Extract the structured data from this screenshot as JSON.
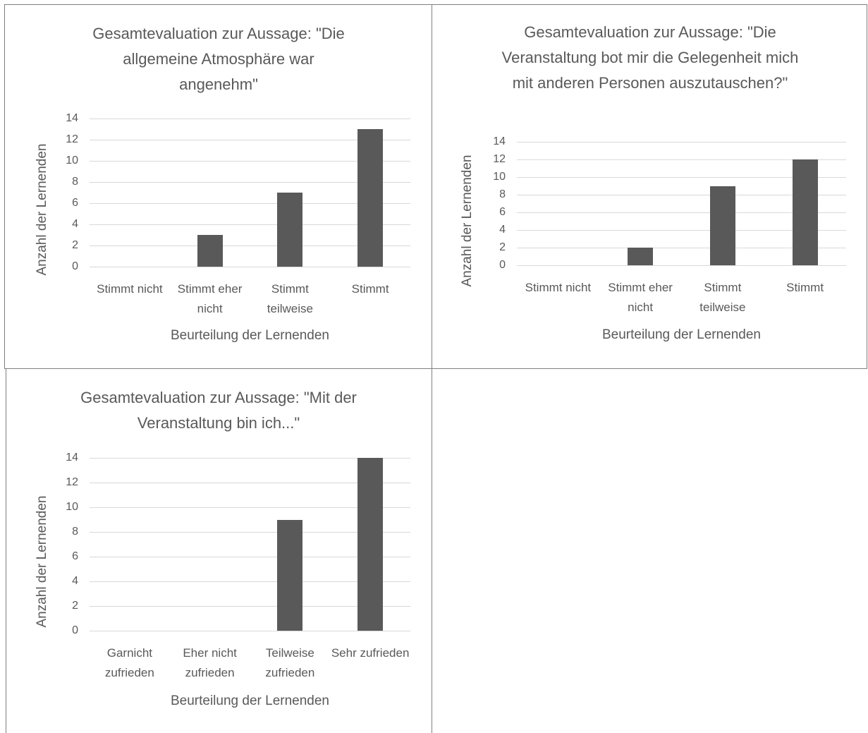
{
  "chart_data": [
    {
      "type": "bar",
      "title": "Gesamtevaluation zur Aussage: \"Die allgemeine Atmosphäre war angenehm\"",
      "y_label": "Anzahl  der Lernenden",
      "x_label": "Beurteilung der Lernenden",
      "categories": [
        "Stimmt nicht",
        "Stimmt eher nicht",
        "Stimmt teilweise",
        "Stimmt"
      ],
      "values": [
        0,
        3,
        7,
        13
      ],
      "color": "#595959",
      "ylim": [
        0,
        14
      ],
      "yticks": [
        0,
        2,
        4,
        6,
        8,
        10,
        12,
        14
      ],
      "grid": true
    },
    {
      "type": "bar",
      "title": "Gesamtevaluation zur Aussage: \"Die Veranstaltung bot mir die Gelegenheit mich mit anderen Personen auszutauschen?\"",
      "y_label": "Anzahl  der Lernenden",
      "x_label": "Beurteilung der Lernenden",
      "categories": [
        "Stimmt nicht",
        "Stimmt eher nicht",
        "Stimmt teilweise",
        "Stimmt"
      ],
      "values": [
        0,
        2,
        9,
        12
      ],
      "color": "#595959",
      "ylim": [
        0,
        14
      ],
      "yticks": [
        0,
        2,
        4,
        6,
        8,
        10,
        12,
        14
      ],
      "grid": true
    },
    {
      "type": "bar",
      "title": "Gesamtevaluation zur Aussage: \"Mit der Veranstaltung bin ich...\"",
      "y_label": "Anzahl  der Lernenden",
      "x_label": "Beurteilung der Lernenden",
      "categories": [
        "Garnicht zufrieden",
        "Eher nicht zufrieden",
        "Teilweise zufrieden",
        "Sehr zufrieden"
      ],
      "values": [
        0,
        0,
        9,
        14
      ],
      "color": "#595959",
      "ylim": [
        0,
        14
      ],
      "yticks": [
        0,
        2,
        4,
        6,
        8,
        10,
        12,
        14
      ],
      "grid": true
    }
  ]
}
